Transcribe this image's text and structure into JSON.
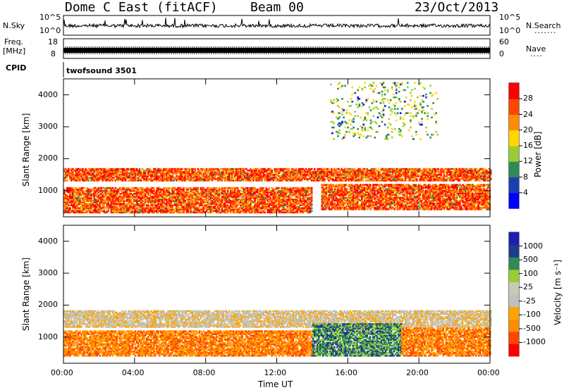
{
  "header": {
    "station": "Dome C East (fitACF)",
    "beam": "Beam 00",
    "date": "23/Oct/2013"
  },
  "panels": {
    "nsky_label": "N.Sky",
    "nsearch_label": "N.Search",
    "freq_label_line1": "Freq.",
    "freq_label_line2": "[MHz]",
    "nave_label": "Nave",
    "cpid_label": "CPID",
    "cpid_value": "twofsound 3501",
    "nsky_ticks": [
      "10^5",
      "10^0"
    ],
    "nsearch_ticks": [
      "10^5",
      "10^0"
    ],
    "freq_ticks": [
      "18",
      "8"
    ],
    "nave_ticks": [
      "60",
      "0"
    ]
  },
  "colors": {
    "power_scale": [
      "#0000ff",
      "#1a3fb4",
      "#2e8b57",
      "#9acd32",
      "#ffd700",
      "#ff8c00",
      "#ff4500",
      "#ff0000"
    ],
    "velocity_scale": [
      "#ff0000",
      "#ff4500",
      "#ff8c00",
      "#ffa500",
      "#c0c0c0",
      "#c8c8b4",
      "#9acd32",
      "#2e8b57",
      "#1e3c8c",
      "#1e1eb4"
    ]
  },
  "chart_data": [
    {
      "type": "heatmap",
      "name": "power",
      "ylabel": "Slant Range [km]",
      "xlabel": "Time UT",
      "x_ticks": [
        "00:00",
        "04:00",
        "08:00",
        "12:00",
        "16:00",
        "20:00",
        "00:00"
      ],
      "y_ticks": [
        "1000",
        "2000",
        "3000",
        "4000"
      ],
      "xlim_hours": [
        0,
        24
      ],
      "ylim_km": [
        180,
        4500
      ],
      "colorbar_label": "Power [dB]",
      "colorbar_ticks": [
        "28",
        "24",
        "20",
        "16",
        "12",
        "8",
        "4"
      ],
      "colorbar_range": [
        0,
        32
      ],
      "bands": [
        {
          "t0": 0,
          "t1": 14.0,
          "r0": 300,
          "r1": 1100,
          "level": "high"
        },
        {
          "t0": 0,
          "t1": 24.0,
          "r0": 1300,
          "r1": 1700,
          "level": "high"
        },
        {
          "t0": 14.5,
          "t1": 24.0,
          "r0": 400,
          "r1": 1200,
          "level": "high"
        },
        {
          "t0": 15.0,
          "t1": 21.0,
          "r0": 2600,
          "r1": 4400,
          "level": "sparse"
        }
      ]
    },
    {
      "type": "heatmap",
      "name": "velocity",
      "ylabel": "Slant Range [km]",
      "xlabel": "Time UT",
      "x_ticks": [
        "00:00",
        "04:00",
        "08:00",
        "12:00",
        "16:00",
        "20:00",
        "00:00"
      ],
      "y_ticks": [
        "1000",
        "2000",
        "3000",
        "4000"
      ],
      "xlim_hours": [
        0,
        24
      ],
      "ylim_km": [
        180,
        4500
      ],
      "colorbar_label": "Velocity [m s⁻¹]",
      "colorbar_ticks": [
        "1000",
        "500",
        "100",
        "25",
        "-25",
        "-100",
        "-500",
        "-1000"
      ],
      "colorbar_range": [
        -1000,
        1000
      ],
      "bands": [
        {
          "t0": 0,
          "t1": 24.0,
          "r0": 1300,
          "r1": 1800,
          "level": "near-zero"
        },
        {
          "t0": 0,
          "t1": 14.0,
          "r0": 400,
          "r1": 1200,
          "level": "negative"
        },
        {
          "t0": 14.0,
          "t1": 19.0,
          "r0": 400,
          "r1": 1400,
          "level": "positive"
        },
        {
          "t0": 19.0,
          "t1": 24.0,
          "r0": 400,
          "r1": 1300,
          "level": "negative"
        }
      ]
    }
  ]
}
